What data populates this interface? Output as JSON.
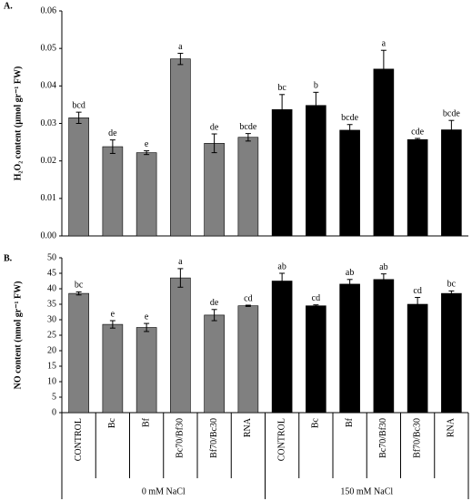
{
  "chart_data": [
    {
      "type": "bar",
      "panel_label": "A.",
      "ylabel": "H₂O₂ content (µmol gr⁻¹ FW)",
      "values": [
        0.0315,
        0.0238,
        0.0222,
        0.0472,
        0.0247,
        0.0263,
        0.0337,
        0.0348,
        0.0282,
        0.0445,
        0.0257,
        0.0283
      ],
      "errors": [
        0.0015,
        0.0018,
        0.0005,
        0.0015,
        0.0025,
        0.001,
        0.004,
        0.0035,
        0.0015,
        0.005,
        0.0003,
        0.0025
      ],
      "value_labels": [
        "bcd",
        "de",
        "e",
        "a",
        "de",
        "bcde",
        "bc",
        "b",
        "bcde",
        "a",
        "cde",
        "bcde"
      ],
      "colors": [
        "#808080",
        "#808080",
        "#808080",
        "#808080",
        "#808080",
        "#808080",
        "#000000",
        "#000000",
        "#000000",
        "#000000",
        "#000000",
        "#000000"
      ],
      "ylim": [
        0,
        0.06
      ],
      "yticks": [
        {
          "value": 0,
          "label": "0.00"
        },
        {
          "value": 0.01,
          "label": "0.01"
        },
        {
          "value": 0.02,
          "label": "0.02"
        },
        {
          "value": 0.03,
          "label": "0.03"
        },
        {
          "value": 0.04,
          "label": "0.04"
        },
        {
          "value": 0.05,
          "label": "0.05"
        },
        {
          "value": 0.06,
          "label": "0.06"
        }
      ],
      "grid": false
    },
    {
      "type": "bar",
      "panel_label": "B.",
      "ylabel": "NO content (nmol gr⁻¹ FW)",
      "categories": [
        "CONTROL",
        "Bc",
        "Bf",
        "Bc70/Bf30",
        "Bf70/Bc30",
        "RNA",
        "CONTROL",
        "Bc",
        "Bf",
        "Bc70/Bf30",
        "Bf70/Bc30",
        "RNA"
      ],
      "group_labels": [
        "0 mM NaCl",
        "150 mM NaCl"
      ],
      "values": [
        38.5,
        28.5,
        27.5,
        43.5,
        31.5,
        34.5,
        42.5,
        34.5,
        41.5,
        43,
        35,
        38.5
      ],
      "errors": [
        0.5,
        1.2,
        1.3,
        3,
        1.8,
        0.2,
        2.5,
        0.3,
        1.5,
        1.8,
        2.2,
        0.8
      ],
      "value_labels": [
        "bc",
        "e",
        "e",
        "a",
        "de",
        "cd",
        "ab",
        "cd",
        "ab",
        "ab",
        "cd",
        "bc"
      ],
      "colors": [
        "#808080",
        "#808080",
        "#808080",
        "#808080",
        "#808080",
        "#808080",
        "#000000",
        "#000000",
        "#000000",
        "#000000",
        "#000000",
        "#000000"
      ],
      "ylim": [
        0,
        50
      ],
      "yticks": [
        0,
        5,
        10,
        15,
        20,
        25,
        30,
        35,
        40,
        45,
        50
      ],
      "grid": false
    }
  ]
}
